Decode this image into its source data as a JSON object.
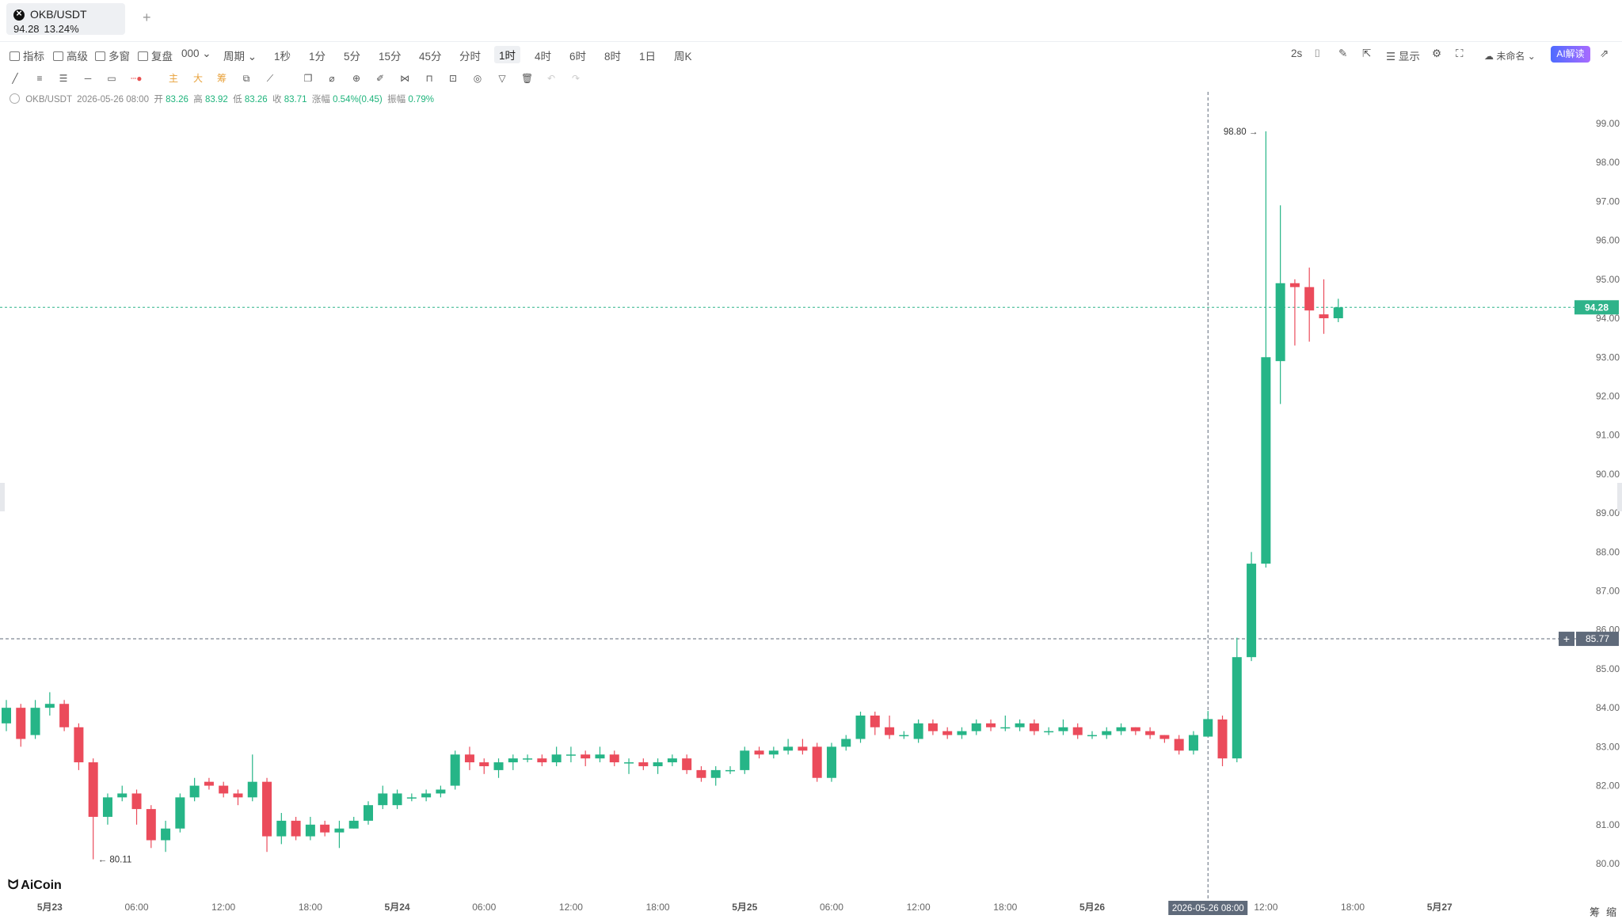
{
  "tab": {
    "symbol": "OKB/USDT",
    "price": "94.28",
    "change": "13.24%",
    "add": "+"
  },
  "toolbar": {
    "left": [
      "指标",
      "高级",
      "多窗",
      "复盘",
      "000",
      "周期"
    ],
    "periods": [
      "1秒",
      "1分",
      "5分",
      "15分",
      "45分",
      "分时",
      "1时",
      "4时",
      "6时",
      "8时",
      "1日",
      "周K"
    ],
    "active_period": "1时",
    "right": {
      "refresh": "2s",
      "display": "显示",
      "layout": "未命名",
      "ai": "AI解读"
    }
  },
  "drawing_tools": [
    "line-tool-icon",
    "parallel-lines-icon",
    "fib-lines-icon",
    "horizontal-line-icon",
    "rectangle-icon",
    "ray-icon",
    "主",
    "大",
    "筹",
    "compare-icon",
    "measure-icon",
    "copy-icon",
    "ruler-icon",
    "zoom-icon",
    "pen-icon",
    "pattern-icon",
    "lock-icon",
    "alert-icon",
    "magnet-icon",
    "filter-icon",
    "trash-icon",
    "undo-icon",
    "redo-icon"
  ],
  "info": {
    "symbol": "OKB/USDT",
    "datetime": "2026-05-26 08:00",
    "open_label": "开",
    "open": "83.26",
    "high_label": "高",
    "high": "83.92",
    "low_label": "低",
    "low": "83.26",
    "close_label": "收",
    "close": "83.71",
    "chg_label": "涨幅",
    "chg": "0.54%(0.45)",
    "amp_label": "振幅",
    "amp": "0.79%"
  },
  "brand": "AiCoin",
  "corner_labels": [
    "筹",
    "缩"
  ],
  "chart_data": {
    "type": "candlestick",
    "interval": "1h",
    "ylim": [
      79.5,
      99.6
    ],
    "y_ticks": [
      80,
      81,
      82,
      83,
      84,
      85,
      86,
      87,
      88,
      89,
      90,
      91,
      92,
      93,
      94,
      95,
      96,
      97,
      98,
      99
    ],
    "x_ticks": [
      {
        "i": 3,
        "label": "5月23"
      },
      {
        "i": 9,
        "label": "06:00"
      },
      {
        "i": 15,
        "label": "12:00"
      },
      {
        "i": 21,
        "label": "18:00"
      },
      {
        "i": 27,
        "label": "5月24"
      },
      {
        "i": 33,
        "label": "06:00"
      },
      {
        "i": 39,
        "label": "12:00"
      },
      {
        "i": 45,
        "label": "18:00"
      },
      {
        "i": 51,
        "label": "5月25"
      },
      {
        "i": 57,
        "label": "06:00"
      },
      {
        "i": 63,
        "label": "12:00"
      },
      {
        "i": 69,
        "label": "18:00"
      },
      {
        "i": 75,
        "label": "5月26"
      },
      {
        "i": 87,
        "label": "12:00"
      },
      {
        "i": 93,
        "label": "18:00"
      },
      {
        "i": 99,
        "label": "5月27"
      }
    ],
    "last_price": 94.28,
    "crosshair_price": 85.77,
    "crosshair_index": 83,
    "crosshair_time": "2026-05-26 08:00",
    "max_label": {
      "i": 87,
      "value": "98.80"
    },
    "min_label": {
      "i": 6,
      "value": "80.11"
    },
    "candles": [
      [
        83.6,
        84.0,
        84.2,
        83.4
      ],
      [
        84.0,
        83.2,
        84.1,
        83.0
      ],
      [
        83.3,
        84.0,
        84.2,
        83.2
      ],
      [
        84.0,
        84.1,
        84.4,
        83.8
      ],
      [
        84.1,
        83.5,
        84.2,
        83.4
      ],
      [
        83.5,
        82.6,
        83.6,
        82.4
      ],
      [
        82.6,
        81.2,
        82.7,
        80.11
      ],
      [
        81.2,
        81.7,
        81.8,
        81.0
      ],
      [
        81.7,
        81.8,
        82.0,
        81.6
      ],
      [
        81.8,
        81.4,
        81.9,
        81.0
      ],
      [
        81.4,
        80.6,
        81.5,
        80.4
      ],
      [
        80.6,
        80.9,
        81.1,
        80.3
      ],
      [
        80.9,
        81.7,
        81.8,
        80.8
      ],
      [
        81.7,
        82.0,
        82.2,
        81.6
      ],
      [
        82.1,
        82.0,
        82.2,
        81.9
      ],
      [
        82.0,
        81.8,
        82.1,
        81.7
      ],
      [
        81.8,
        81.7,
        81.9,
        81.5
      ],
      [
        81.7,
        82.1,
        82.8,
        81.6
      ],
      [
        82.1,
        80.7,
        82.2,
        80.3
      ],
      [
        80.7,
        81.1,
        81.3,
        80.5
      ],
      [
        81.1,
        80.7,
        81.2,
        80.6
      ],
      [
        80.7,
        81.0,
        81.2,
        80.6
      ],
      [
        81.0,
        80.8,
        81.1,
        80.7
      ],
      [
        80.8,
        80.9,
        81.1,
        80.4
      ],
      [
        80.9,
        81.1,
        81.2,
        80.9
      ],
      [
        81.1,
        81.5,
        81.6,
        81.0
      ],
      [
        81.5,
        81.8,
        82.0,
        81.4
      ],
      [
        81.5,
        81.8,
        81.9,
        81.4
      ],
      [
        81.7,
        81.7,
        81.8,
        81.6
      ],
      [
        81.7,
        81.8,
        81.9,
        81.6
      ],
      [
        81.8,
        81.9,
        82.0,
        81.7
      ],
      [
        82.0,
        82.8,
        82.9,
        81.9
      ],
      [
        82.8,
        82.6,
        83.0,
        82.4
      ],
      [
        82.6,
        82.5,
        82.7,
        82.3
      ],
      [
        82.4,
        82.6,
        82.7,
        82.2
      ],
      [
        82.6,
        82.7,
        82.8,
        82.4
      ],
      [
        82.7,
        82.7,
        82.8,
        82.6
      ],
      [
        82.7,
        82.6,
        82.8,
        82.5
      ],
      [
        82.6,
        82.8,
        83.0,
        82.5
      ],
      [
        82.8,
        82.8,
        83.0,
        82.6
      ],
      [
        82.8,
        82.7,
        82.9,
        82.5
      ],
      [
        82.7,
        82.8,
        83.0,
        82.6
      ],
      [
        82.8,
        82.6,
        82.9,
        82.5
      ],
      [
        82.6,
        82.6,
        82.7,
        82.3
      ],
      [
        82.6,
        82.5,
        82.7,
        82.4
      ],
      [
        82.5,
        82.6,
        82.7,
        82.3
      ],
      [
        82.6,
        82.7,
        82.8,
        82.5
      ],
      [
        82.7,
        82.4,
        82.8,
        82.3
      ],
      [
        82.4,
        82.2,
        82.5,
        82.1
      ],
      [
        82.2,
        82.4,
        82.5,
        82.0
      ],
      [
        82.4,
        82.4,
        82.5,
        82.3
      ],
      [
        82.4,
        82.9,
        83.0,
        82.3
      ],
      [
        82.9,
        82.8,
        83.0,
        82.7
      ],
      [
        82.8,
        82.9,
        83.0,
        82.7
      ],
      [
        82.9,
        83.0,
        83.2,
        82.8
      ],
      [
        83.0,
        82.9,
        83.2,
        82.8
      ],
      [
        83.0,
        82.2,
        83.1,
        82.1
      ],
      [
        82.2,
        83.0,
        83.1,
        82.1
      ],
      [
        83.0,
        83.2,
        83.3,
        82.9
      ],
      [
        83.2,
        83.8,
        83.9,
        83.1
      ],
      [
        83.8,
        83.5,
        83.9,
        83.3
      ],
      [
        83.5,
        83.3,
        83.8,
        83.2
      ],
      [
        83.3,
        83.3,
        83.4,
        83.2
      ],
      [
        83.2,
        83.6,
        83.7,
        83.1
      ],
      [
        83.6,
        83.4,
        83.7,
        83.3
      ],
      [
        83.4,
        83.3,
        83.5,
        83.2
      ],
      [
        83.3,
        83.4,
        83.5,
        83.2
      ],
      [
        83.4,
        83.6,
        83.7,
        83.3
      ],
      [
        83.6,
        83.5,
        83.7,
        83.4
      ],
      [
        83.5,
        83.5,
        83.8,
        83.4
      ],
      [
        83.5,
        83.6,
        83.7,
        83.4
      ],
      [
        83.6,
        83.4,
        83.7,
        83.3
      ],
      [
        83.4,
        83.4,
        83.5,
        83.3
      ],
      [
        83.4,
        83.5,
        83.7,
        83.3
      ],
      [
        83.5,
        83.3,
        83.6,
        83.2
      ],
      [
        83.3,
        83.3,
        83.4,
        83.2
      ],
      [
        83.3,
        83.4,
        83.5,
        83.2
      ],
      [
        83.4,
        83.5,
        83.6,
        83.3
      ],
      [
        83.5,
        83.4,
        83.5,
        83.3
      ],
      [
        83.4,
        83.3,
        83.5,
        83.2
      ],
      [
        83.3,
        83.2,
        83.3,
        83.1
      ],
      [
        83.2,
        82.9,
        83.3,
        82.8
      ],
      [
        82.9,
        83.3,
        83.4,
        82.8
      ],
      [
        83.26,
        83.71,
        83.92,
        83.26
      ],
      [
        83.7,
        82.7,
        83.8,
        82.5
      ],
      [
        82.7,
        85.3,
        85.8,
        82.6
      ],
      [
        85.3,
        87.7,
        88.0,
        85.2
      ],
      [
        87.7,
        93.0,
        98.8,
        87.6
      ],
      [
        92.9,
        94.9,
        96.9,
        91.8
      ],
      [
        94.9,
        94.8,
        95.0,
        93.3
      ],
      [
        94.8,
        94.2,
        95.3,
        93.4
      ],
      [
        94.1,
        94.0,
        95.0,
        93.6
      ],
      [
        94.0,
        94.28,
        94.5,
        93.9
      ]
    ]
  },
  "colors": {
    "up": "#26b587",
    "down": "#eb4b5b",
    "last_line": "#2fb38a",
    "crosshair": "#5f6a7a",
    "axis_text": "#666666",
    "ai_from": "#4e6bff",
    "ai_to": "#a86bff"
  }
}
